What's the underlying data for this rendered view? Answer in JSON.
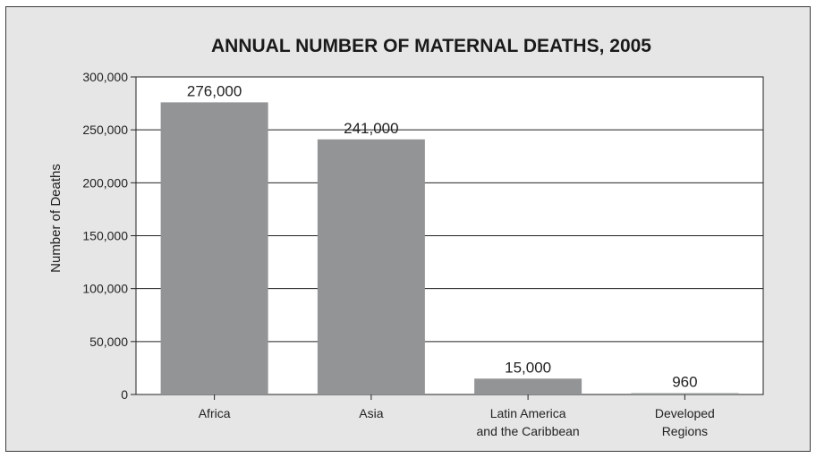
{
  "chart_data": {
    "type": "bar",
    "title": "ANNUAL NUMBER OF MATERNAL DEATHS, 2005",
    "xlabel": "",
    "ylabel": "Number of Deaths",
    "categories": [
      [
        "Africa"
      ],
      [
        "Asia"
      ],
      [
        "Latin America",
        "and the Caribbean"
      ],
      [
        "Developed",
        "Regions"
      ]
    ],
    "values": [
      276000,
      241000,
      15000,
      960
    ],
    "data_labels": [
      "276,000",
      "241,000",
      "15,000",
      "960"
    ],
    "ylim": [
      0,
      300000
    ],
    "y_ticks": [
      0,
      50000,
      100000,
      150000,
      200000,
      250000,
      300000
    ],
    "y_tick_labels": [
      "0",
      "50,000",
      "100,000",
      "150,000",
      "200,000",
      "250,000",
      "300,000"
    ],
    "grid": true,
    "colors": {
      "bar": "#939496",
      "background": "#e6e6e7",
      "plot_background": "#ffffff",
      "grid": "#222222"
    }
  }
}
